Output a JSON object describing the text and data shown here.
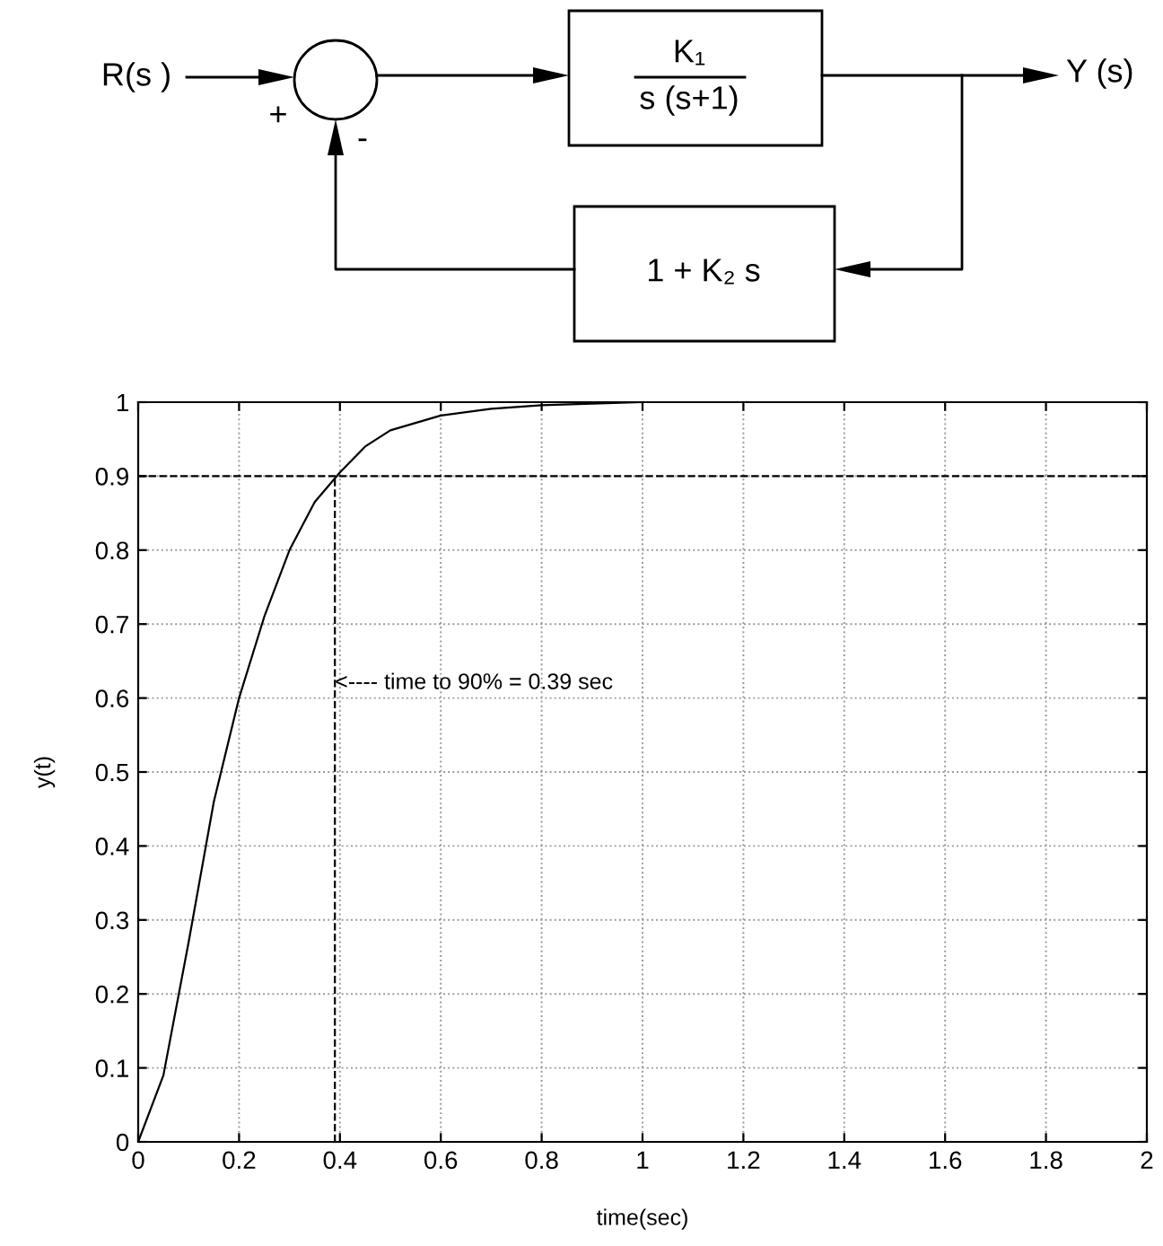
{
  "chart_data": [
    {
      "type": "other",
      "annotations": [
        "R(s )",
        "+",
        "-",
        "K₁",
        "s (s+1)",
        "Y (s)",
        "1 + K₂ s"
      ]
    },
    {
      "type": "line",
      "xlabel": "time(sec)",
      "ylabel": "y(t)",
      "x": [
        0,
        0.05,
        0.1,
        0.15,
        0.2,
        0.25,
        0.3,
        0.35,
        0.4,
        0.45,
        0.5,
        0.6,
        0.7,
        0.8,
        0.9,
        1.0,
        2.0
      ],
      "series": [
        {
          "color": "#000000",
          "values": [
            0,
            0.09,
            0.27,
            0.46,
            0.6,
            0.71,
            0.8,
            0.865,
            0.905,
            0.94,
            0.962,
            0.982,
            0.991,
            0.996,
            0.998,
            1.0,
            1.0
          ]
        }
      ],
      "xlim": [
        0,
        2
      ],
      "ylim": [
        0,
        1
      ],
      "xticks": [
        0,
        0.2,
        0.4,
        0.6,
        0.8,
        1,
        1.2,
        1.4,
        1.6,
        1.8,
        2
      ],
      "yticks": [
        0,
        0.1,
        0.2,
        0.3,
        0.4,
        0.5,
        0.6,
        0.7,
        0.8,
        0.9,
        1
      ],
      "grid": true,
      "ref_lines": [
        {
          "axis": "y",
          "value": 0.9,
          "color": "#000000",
          "line_style": "dashed"
        },
        {
          "axis": "x",
          "value": 0.39,
          "color": "#000000",
          "line_style": "dashed"
        }
      ],
      "annotations": [
        {
          "text": "<---- time to 90% = 0.39 sec",
          "x": 0.39,
          "y": 0.62
        }
      ]
    }
  ]
}
